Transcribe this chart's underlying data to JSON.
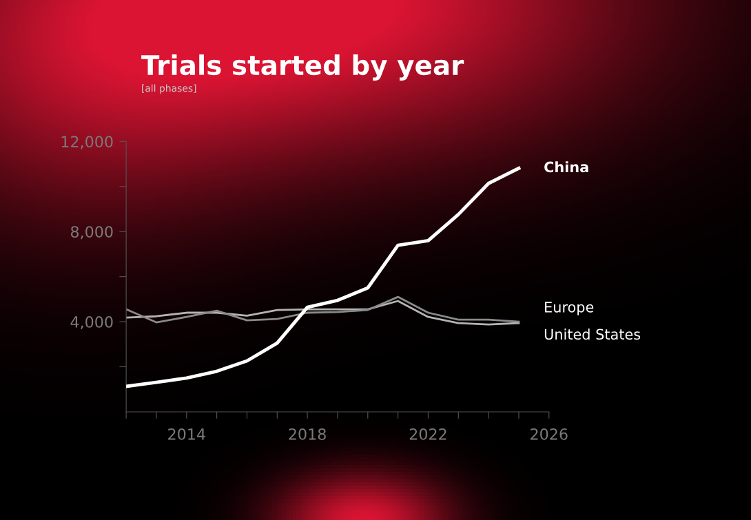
{
  "chart_data": {
    "type": "line",
    "title": "Trials started by year",
    "subtitle": "[all phases]",
    "x": [
      2012,
      2013,
      2014,
      2015,
      2016,
      2017,
      2018,
      2019,
      2020,
      2021,
      2022,
      2023,
      2024,
      2025
    ],
    "series": [
      {
        "name": "China",
        "color": "#ffffff",
        "values": [
          1130,
          1310,
          1500,
          1800,
          2260,
          3050,
          4640,
          4950,
          5500,
          7390,
          7600,
          8760,
          10140,
          10810
        ]
      },
      {
        "name": "Europe",
        "color": "#8a8a8a",
        "values": [
          4550,
          3970,
          4210,
          4490,
          4060,
          4120,
          4400,
          4430,
          4520,
          5100,
          4400,
          4090,
          4090,
          4000
        ]
      },
      {
        "name": "United States",
        "color": "#b4b4b4",
        "values": [
          4180,
          4240,
          4400,
          4400,
          4270,
          4520,
          4550,
          4550,
          4550,
          4920,
          4210,
          3940,
          3880,
          3940
        ]
      }
    ],
    "xlim": [
      2012,
      2026
    ],
    "xticks": [
      {
        "value": 2012,
        "label": null
      },
      {
        "value": 2013,
        "label": null
      },
      2014,
      {
        "value": 2015,
        "label": null
      },
      {
        "value": 2016,
        "label": null
      },
      {
        "value": 2017,
        "label": null
      },
      2018,
      {
        "value": 2019,
        "label": null
      },
      {
        "value": 2020,
        "label": null
      },
      {
        "value": 2021,
        "label": null
      },
      2022,
      {
        "value": 2023,
        "label": null
      },
      {
        "value": 2024,
        "label": null
      },
      {
        "value": 2025,
        "label": null
      },
      2026
    ],
    "ylim": [
      0,
      12000
    ],
    "yticks": [
      {
        "value": 2000,
        "label": null
      },
      {
        "value": 4000,
        "label": "4,000"
      },
      {
        "value": 6000,
        "label": null
      },
      {
        "value": 8000,
        "label": "8,000"
      },
      {
        "value": 10000,
        "label": null
      },
      {
        "value": 12000,
        "label": "12,000"
      }
    ],
    "grid": false,
    "legend": false,
    "marker": "none",
    "line_style": "solid"
  }
}
